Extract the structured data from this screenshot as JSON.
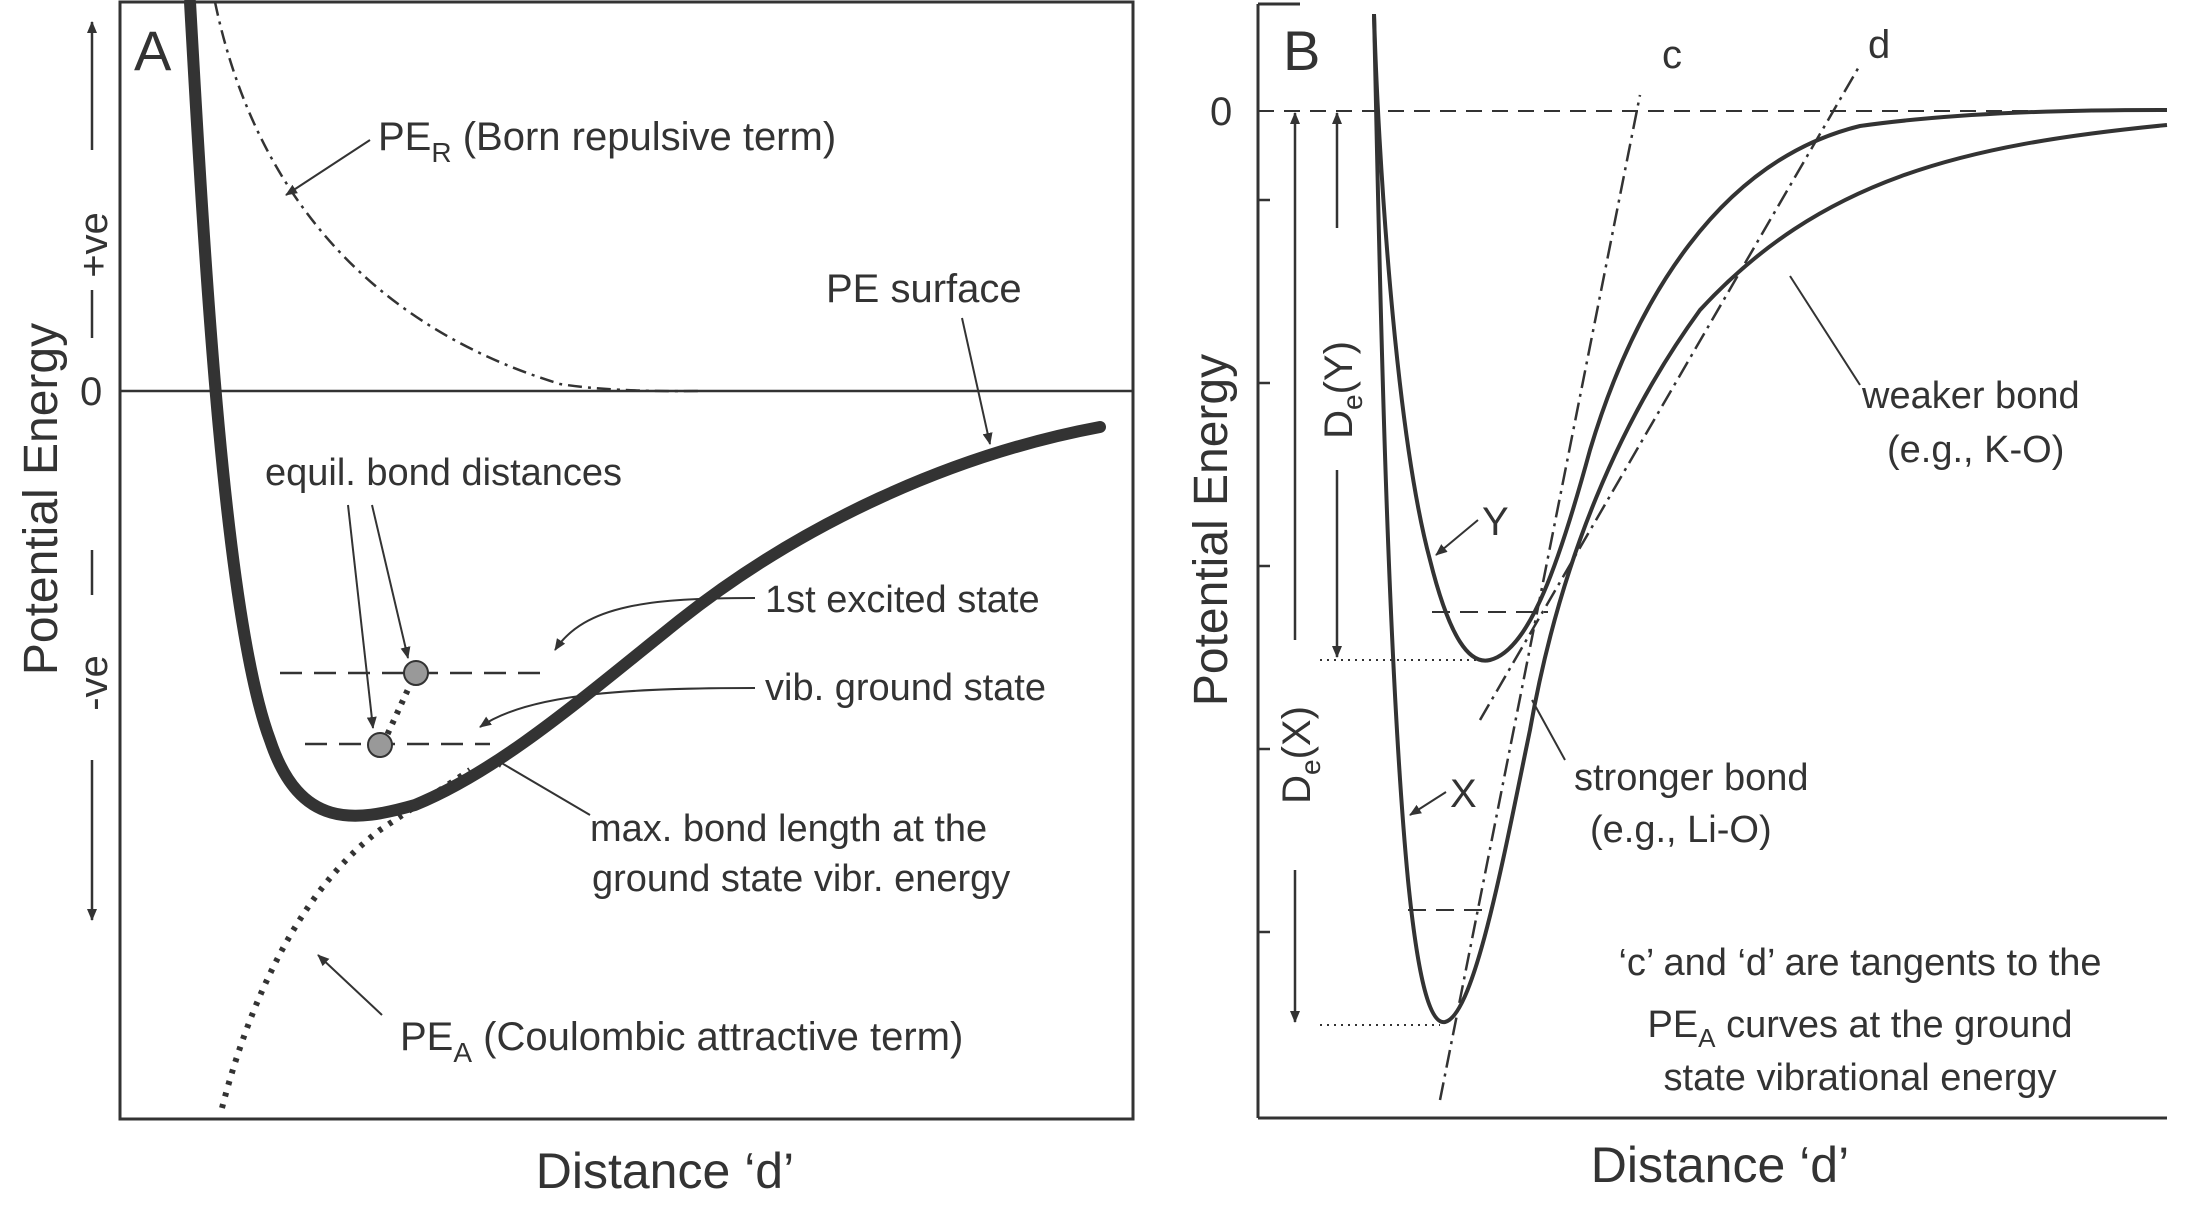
{
  "panel_a": {
    "panel_label": "A",
    "y_axis_label": "Potential Energy",
    "x_axis_label": "Distance ‘d’",
    "plus_label": "+ve",
    "minus_label": "-ve",
    "zero_label": "0",
    "pe_r_main": "PE",
    "pe_r_sub": "R",
    "pe_r_rest": " (Born repulsive term)",
    "pe_surface": "PE surface",
    "equil_distances": "equil. bond distances",
    "first_excited": "1st excited state",
    "vib_ground": "vib. ground state",
    "max_bond_line1": "max. bond length at the",
    "max_bond_line2": "ground state vibr. energy",
    "pe_a_main": "PE",
    "pe_a_sub": "A",
    "pe_a_rest": " (Coulombic attractive term)"
  },
  "panel_b": {
    "panel_label": "B",
    "y_axis_label": "Potential Energy",
    "x_axis_label": "Distance ‘d’",
    "zero_label": "0",
    "tangent_c": "c",
    "tangent_d": "d",
    "de_y_main": "D",
    "de_y_sub": "e",
    "de_y_rest": "(Y)",
    "de_x_main": "D",
    "de_x_sub": "e",
    "de_x_rest": "(X)",
    "label_y": "Y",
    "label_x": "X",
    "weaker_line1": "weaker bond",
    "weaker_line2": "(e.g., K-O)",
    "stronger_line1": "stronger bond",
    "stronger_line2": "(e.g., Li-O)",
    "note_line1": "‘c’ and ‘d’ are tangents to the",
    "note_line2_main": "PE",
    "note_line2_sub": "A",
    "note_line2_rest": " curves at the ground",
    "note_line3": "state vibrational energy"
  },
  "colors": {
    "ink": "#333333",
    "marker_fill": "#999999"
  }
}
